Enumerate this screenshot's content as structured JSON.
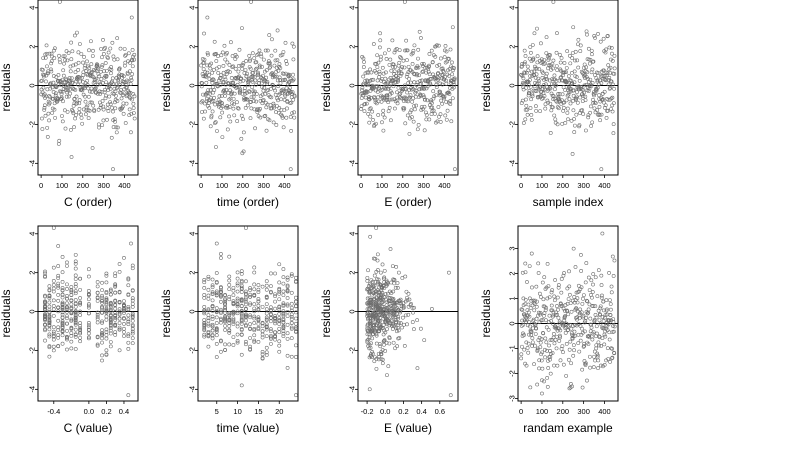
{
  "chart_data": [
    {
      "type": "scatter",
      "xlabel": "C (order)",
      "ylabel": "residuals",
      "xlim": [
        -15,
        465
      ],
      "ylim": [
        -4.6,
        4.4
      ],
      "xticks": [
        0,
        100,
        200,
        300,
        400
      ],
      "yticks": [
        -4,
        -2,
        0,
        2,
        4
      ],
      "xtick_labels": [
        "0",
        "100",
        "200",
        "300",
        "400"
      ],
      "ytick_labels": [
        "-4",
        "-2",
        "0",
        "2",
        "4"
      ],
      "reference_line": 0,
      "points": {
        "n": 450,
        "x_min": 0,
        "x_max": 450,
        "y_sd": 1.05,
        "discrete_x": []
      },
      "highlights": [
        [
          90,
          4.3
        ],
        [
          345,
          -4.3
        ],
        [
          435,
          3.5
        ]
      ]
    },
    {
      "type": "scatter",
      "xlabel": "time (order)",
      "ylabel": "residuals",
      "xlim": [
        -15,
        465
      ],
      "ylim": [
        -4.6,
        4.4
      ],
      "xticks": [
        0,
        100,
        200,
        300,
        400
      ],
      "yticks": [
        -4,
        -2,
        0,
        2,
        4
      ],
      "xtick_labels": [
        "0",
        "100",
        "200",
        "300",
        "400"
      ],
      "ytick_labels": [
        "-4",
        "-2",
        "0",
        "2",
        "4"
      ],
      "reference_line": 0,
      "points": {
        "n": 450,
        "x_min": 0,
        "x_max": 450,
        "y_sd": 1.05,
        "discrete_x": []
      },
      "highlights": [
        [
          240,
          4.3
        ],
        [
          430,
          -4.3
        ],
        [
          30,
          3.5
        ]
      ]
    },
    {
      "type": "scatter",
      "xlabel": "E (order)",
      "ylabel": "residuals",
      "xlim": [
        -15,
        465
      ],
      "ylim": [
        -4.6,
        4.4
      ],
      "xticks": [
        0,
        100,
        200,
        300,
        400
      ],
      "yticks": [
        -4,
        -2,
        0,
        2,
        4
      ],
      "xtick_labels": [
        "0",
        "100",
        "200",
        "300",
        "400"
      ],
      "ytick_labels": [
        "-4",
        "-2",
        "0",
        "2",
        "4"
      ],
      "reference_line": 0,
      "points": {
        "n": 450,
        "x_min": 0,
        "x_max": 450,
        "y_sd": 1.05,
        "discrete_x": []
      },
      "highlights": [
        [
          210,
          4.3
        ],
        [
          450,
          -4.3
        ],
        [
          440,
          3.0
        ]
      ]
    },
    {
      "type": "scatter",
      "xlabel": "sample index",
      "ylabel": "residuals",
      "xlim": [
        -15,
        465
      ],
      "ylim": [
        -4.6,
        4.4
      ],
      "xticks": [
        0,
        100,
        200,
        300,
        400
      ],
      "yticks": [
        -4,
        -2,
        0,
        2,
        4
      ],
      "xtick_labels": [
        "0",
        "100",
        "200",
        "300",
        "400"
      ],
      "ytick_labels": [
        "-4",
        "-2",
        "0",
        "2",
        "4"
      ],
      "reference_line": 0,
      "points": {
        "n": 450,
        "x_min": 0,
        "x_max": 450,
        "y_sd": 1.05,
        "discrete_x": []
      },
      "highlights": [
        [
          155,
          4.3
        ],
        [
          385,
          -4.3
        ],
        [
          250,
          3.0
        ]
      ]
    },
    {
      "type": "scatter",
      "xlabel": "C (value)",
      "ylabel": "residuals",
      "xlim": [
        -0.58,
        0.56
      ],
      "ylim": [
        -4.6,
        4.4
      ],
      "xticks": [
        -0.4,
        0.0,
        0.2,
        0.4
      ],
      "yticks": [
        -4,
        -2,
        0,
        2,
        4
      ],
      "xtick_labels": [
        "-0.4",
        "0.0",
        "0.2",
        "0.4"
      ],
      "ytick_labels": [
        "-4",
        "-2",
        "0",
        "2",
        "4"
      ],
      "reference_line": 0,
      "points": {
        "n": 450,
        "x_min": -0.53,
        "x_max": 0.52,
        "y_sd": 1.05,
        "discrete_x": [
          -0.5,
          -0.45,
          -0.4,
          -0.35,
          -0.3,
          -0.25,
          -0.2,
          -0.15,
          -0.1,
          0.0,
          0.1,
          0.15,
          0.2,
          0.25,
          0.3,
          0.35,
          0.4,
          0.45,
          0.5
        ]
      },
      "highlights": [
        [
          -0.4,
          4.3
        ],
        [
          0.45,
          -4.3
        ],
        [
          0.48,
          3.5
        ]
      ]
    },
    {
      "type": "scatter",
      "xlabel": "time (value)",
      "ylabel": "residuals",
      "xlim": [
        0.5,
        24.5
      ],
      "ylim": [
        -4.6,
        4.4
      ],
      "xticks": [
        5,
        10,
        15,
        20
      ],
      "yticks": [
        -4,
        -2,
        0,
        2,
        4
      ],
      "xtick_labels": [
        "5",
        "10",
        "15",
        "20"
      ],
      "ytick_labels": [
        "-4",
        "-2",
        "0",
        "2",
        "4"
      ],
      "reference_line": 0,
      "points": {
        "n": 450,
        "x_min": 2,
        "x_max": 24,
        "y_sd": 1.05,
        "discrete_x": [
          2,
          3,
          4,
          5,
          6,
          7,
          8,
          9,
          10,
          11,
          12,
          13,
          14,
          15,
          16,
          17,
          18,
          19,
          20,
          21,
          22,
          23,
          24
        ]
      },
      "highlights": [
        [
          12,
          4.3
        ],
        [
          24,
          -4.3
        ],
        [
          5,
          3.5
        ]
      ]
    },
    {
      "type": "scatter",
      "xlabel": "E (value)",
      "ylabel": "residuals",
      "xlim": [
        -0.3,
        0.8
      ],
      "ylim": [
        -4.6,
        4.4
      ],
      "xticks": [
        -0.2,
        0.0,
        0.2,
        0.4,
        0.6
      ],
      "yticks": [
        -4,
        -2,
        0,
        2,
        4
      ],
      "xtick_labels": [
        "-0.2",
        "0.0",
        "0.2",
        "0.4",
        "0.6"
      ],
      "ytick_labels": [
        "-4",
        "-2",
        "0",
        "2",
        "4"
      ],
      "reference_line": 0,
      "points": {
        "n": 450,
        "x_min": -0.25,
        "x_max": 0.75,
        "y_sd": 1.05,
        "discrete_x": []
      },
      "highlights": [
        [
          -0.1,
          4.3
        ],
        [
          0.72,
          -4.3
        ],
        [
          0.7,
          2.0
        ]
      ]
    },
    {
      "type": "scatter",
      "xlabel": "randam example",
      "ylabel": "residuals",
      "xlim": [
        -15,
        465
      ],
      "ylim": [
        -3.1,
        3.9
      ],
      "xticks": [
        0,
        100,
        200,
        300,
        400
      ],
      "yticks": [
        -3,
        -2,
        -1,
        0,
        1,
        2,
        3
      ],
      "xtick_labels": [
        "0",
        "100",
        "200",
        "300",
        "400"
      ],
      "ytick_labels": [
        "-3",
        "-2",
        "-1",
        "0",
        "1",
        "2",
        "3"
      ],
      "reference_line": 0,
      "points": {
        "n": 450,
        "x_min": 0,
        "x_max": 450,
        "y_sd": 1.0,
        "discrete_x": []
      },
      "highlights": [
        [
          390,
          3.6
        ],
        [
          100,
          -2.8
        ],
        [
          20,
          2.4
        ]
      ]
    }
  ]
}
